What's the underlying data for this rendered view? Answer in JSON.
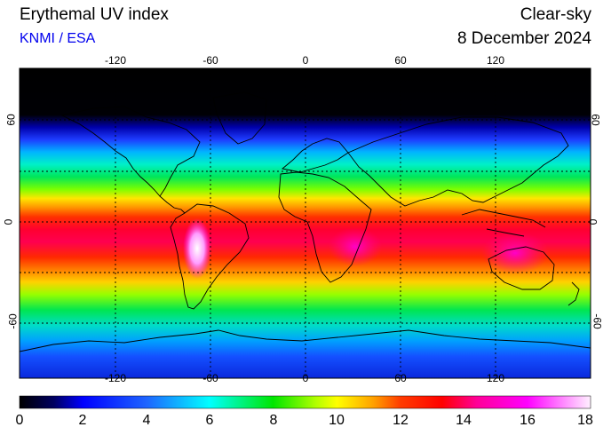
{
  "header": {
    "title": "Erythemal UV index",
    "source": "KNMI / ESA",
    "sky": "Clear-sky",
    "date": "8 December 2024"
  },
  "axes": {
    "lon_ticks": [
      "-120",
      "-60",
      "0",
      "60",
      "120"
    ],
    "lat_ticks": [
      "60",
      "0",
      "-60"
    ]
  },
  "colorbar": {
    "labels": [
      "0",
      "2",
      "4",
      "6",
      "8",
      "10",
      "12",
      "14",
      "16",
      "18"
    ],
    "min": 0,
    "max": 18
  },
  "colors": {
    "polar_night": "#000000",
    "label_blue": "#0000ee"
  }
}
